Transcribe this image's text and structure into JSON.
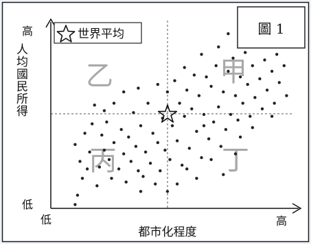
{
  "figure_label": "圖 1",
  "legend": {
    "label": "世界平均",
    "marker": "star-icon"
  },
  "chart_data": {
    "type": "scatter",
    "title": "",
    "xlabel": "都市化程度",
    "ylabel": "人均國民所得",
    "x_tick_labels": {
      "low": "低",
      "high": "高"
    },
    "y_tick_labels": {
      "low": "低",
      "high": "高"
    },
    "xlim": [
      0,
      10
    ],
    "ylim": [
      0,
      10
    ],
    "grid": false,
    "legend_position": "top-left",
    "reference_point": {
      "name": "世界平均",
      "x": 5.0,
      "y": 5.0
    },
    "quadrants": [
      {
        "label": "甲",
        "position": "top-right"
      },
      {
        "label": "乙",
        "position": "top-left"
      },
      {
        "label": "丙",
        "position": "bottom-left"
      },
      {
        "label": "丁",
        "position": "bottom-right"
      }
    ],
    "points": [
      [
        1.0,
        0.2
      ],
      [
        1.1,
        0.7
      ],
      [
        1.3,
        1.6
      ],
      [
        1.2,
        2.5
      ],
      [
        1.0,
        3.4
      ],
      [
        1.4,
        4.0
      ],
      [
        1.5,
        2.1
      ],
      [
        1.6,
        3.0
      ],
      [
        1.7,
        4.5
      ],
      [
        1.9,
        1.2
      ],
      [
        2.0,
        2.2
      ],
      [
        2.2,
        3.1
      ],
      [
        2.1,
        3.9
      ],
      [
        2.3,
        4.6
      ],
      [
        2.4,
        2.6
      ],
      [
        2.5,
        1.6
      ],
      [
        2.6,
        3.5
      ],
      [
        2.8,
        2.1
      ],
      [
        2.9,
        4.2
      ],
      [
        3.0,
        2.9
      ],
      [
        3.1,
        1.4
      ],
      [
        3.2,
        3.8
      ],
      [
        3.3,
        2.5
      ],
      [
        3.4,
        5.1
      ],
      [
        3.5,
        3.3
      ],
      [
        3.6,
        2.0
      ],
      [
        3.7,
        4.4
      ],
      [
        3.8,
        1.7
      ],
      [
        3.9,
        3.0
      ],
      [
        4.0,
        5.6
      ],
      [
        4.1,
        2.4
      ],
      [
        4.2,
        4.0
      ],
      [
        4.3,
        1.3
      ],
      [
        4.4,
        3.5
      ],
      [
        4.5,
        2.0
      ],
      [
        4.6,
        4.8
      ],
      [
        4.7,
        3.1
      ],
      [
        4.8,
        6.2
      ],
      [
        4.9,
        2.6
      ],
      [
        5.0,
        4.4
      ],
      [
        5.1,
        6.8
      ],
      [
        5.2,
        3.6
      ],
      [
        5.3,
        5.6
      ],
      [
        5.4,
        2.3
      ],
      [
        5.5,
        4.9
      ],
      [
        5.6,
        6.3
      ],
      [
        5.7,
        3.2
      ],
      [
        5.8,
        5.3
      ],
      [
        5.9,
        7.1
      ],
      [
        6.0,
        4.1
      ],
      [
        6.1,
        6.0
      ],
      [
        6.2,
        2.7
      ],
      [
        6.3,
        5.0
      ],
      [
        6.4,
        7.0
      ],
      [
        6.5,
        3.7
      ],
      [
        6.6,
        6.5
      ],
      [
        6.7,
        4.6
      ],
      [
        6.8,
        7.6
      ],
      [
        6.9,
        5.4
      ],
      [
        7.0,
        3.3
      ],
      [
        7.1,
        6.2
      ],
      [
        7.2,
        4.2
      ],
      [
        7.3,
        7.3
      ],
      [
        7.4,
        5.0
      ],
      [
        7.5,
        8.0
      ],
      [
        7.6,
        6.0
      ],
      [
        7.7,
        4.7
      ],
      [
        7.8,
        7.0
      ],
      [
        7.9,
        5.6
      ],
      [
        8.0,
        8.3
      ],
      [
        8.1,
        6.6
      ],
      [
        8.2,
        4.9
      ],
      [
        8.3,
        7.6
      ],
      [
        8.4,
        5.9
      ],
      [
        8.5,
        8.7
      ],
      [
        8.6,
        6.9
      ],
      [
        8.7,
        5.3
      ],
      [
        8.8,
        7.9
      ],
      [
        8.9,
        6.3
      ],
      [
        9.0,
        8.9
      ],
      [
        9.1,
        7.3
      ],
      [
        9.2,
        5.6
      ],
      [
        9.3,
        8.2
      ],
      [
        9.4,
        6.7
      ],
      [
        9.5,
        9.1
      ],
      [
        9.6,
        7.6
      ],
      [
        9.7,
        6.0
      ],
      [
        9.8,
        8.6
      ],
      [
        3.0,
        6.2
      ],
      [
        3.6,
        6.4
      ],
      [
        4.4,
        6.6
      ],
      [
        2.6,
        5.6
      ],
      [
        5.2,
        1.3
      ],
      [
        5.6,
        2.1
      ],
      [
        6.0,
        1.6
      ],
      [
        6.6,
        2.6
      ],
      [
        7.1,
        1.8
      ],
      [
        7.6,
        2.9
      ],
      [
        4.8,
        0.9
      ],
      [
        3.7,
        0.9
      ],
      [
        5.5,
        7.5
      ],
      [
        6.2,
        8.2
      ],
      [
        6.9,
        8.6
      ],
      [
        7.3,
        9.3
      ],
      [
        8.0,
        9.5
      ],
      [
        9.0,
        9.8
      ],
      [
        2.2,
        5.2
      ],
      [
        1.8,
        5.5
      ],
      [
        8.3,
        4.3
      ],
      [
        9.1,
        4.9
      ],
      [
        7.8,
        3.8
      ],
      [
        6.3,
        4.4
      ]
    ]
  }
}
